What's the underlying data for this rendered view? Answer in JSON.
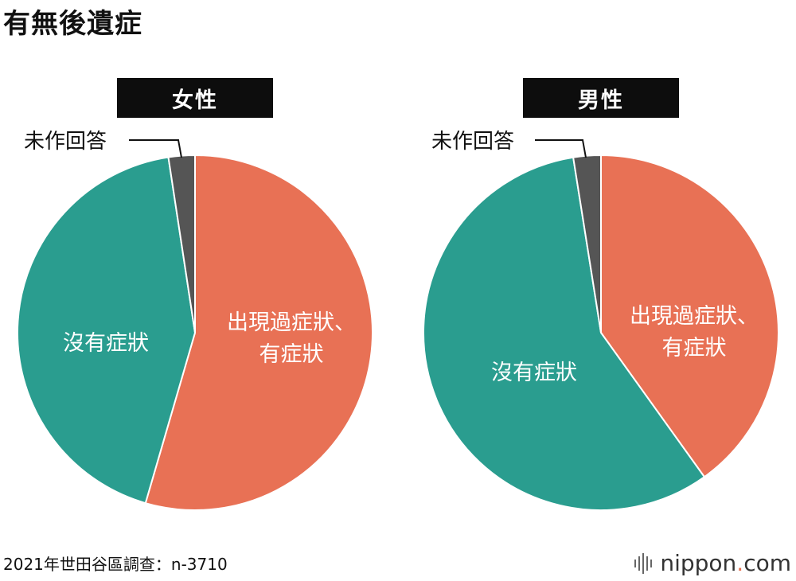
{
  "title": "有無後遺症",
  "source": "2021年世田谷區調查：n-3710",
  "brand": {
    "prefix": "nippon",
    "dot": ".",
    "suffix": "com"
  },
  "colors": {
    "symptom": "#e87155",
    "none": "#2a9d8f",
    "na": "#555555"
  },
  "chart_data": [
    {
      "type": "pie",
      "title": "女性",
      "slices": [
        {
          "label": "出現過症狀、有症狀",
          "value": 54.5,
          "color": "#e87155"
        },
        {
          "label": "沒有症狀",
          "value": 43.1,
          "color": "#2a9d8f"
        },
        {
          "label": "未作回答",
          "value": 2.4,
          "color": "#555555"
        }
      ]
    },
    {
      "type": "pie",
      "title": "男性",
      "slices": [
        {
          "label": "出現過症狀、有症狀",
          "value": 40.1,
          "color": "#e87155"
        },
        {
          "label": "沒有症狀",
          "value": 57.4,
          "color": "#2a9d8f"
        },
        {
          "label": "未作回答",
          "value": 2.5,
          "color": "#555555"
        }
      ]
    }
  ],
  "labels": {
    "female": {
      "title": "女性",
      "na": "未作回答",
      "symptom_1": "出現過症狀、",
      "symptom_2": "有症狀",
      "none": "沒有症狀"
    },
    "male": {
      "title": "男性",
      "na": "未作回答",
      "symptom_1": "出現過症狀、",
      "symptom_2": "有症狀",
      "none": "沒有症狀"
    }
  }
}
